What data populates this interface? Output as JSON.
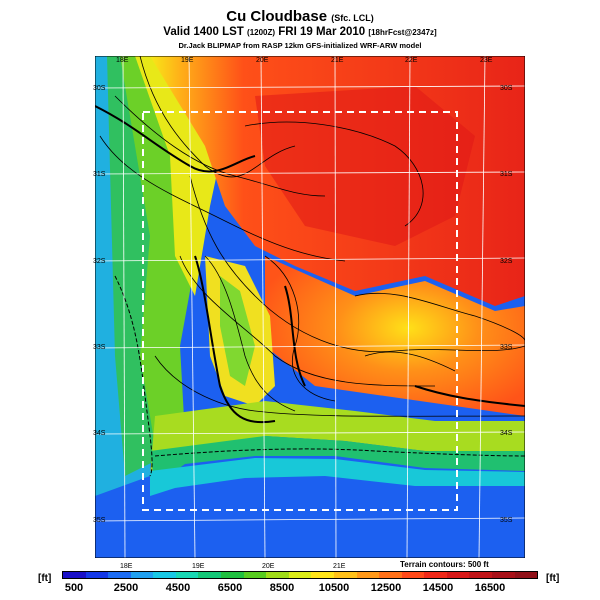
{
  "header": {
    "title": "Cu Cloudbase",
    "title_suffix": "(Sfc. LCL)",
    "valid_main": "Valid 1400 LST",
    "valid_time_code": "(1200Z)",
    "valid_date": "FRI 19 Mar 2010",
    "valid_fcst": "[18hrFcst@2347z]",
    "credit": "Dr.Jack BLIPMAP from RASP 12km GFS-initialized WRF-ARW model"
  },
  "map": {
    "lon_labels_top": [
      "18E",
      "19E",
      "20E",
      "21E",
      "22E",
      "23E"
    ],
    "lon_labels_bottom": [
      "18E",
      "19E",
      "20E",
      "21E"
    ],
    "lat_labels": [
      "30S",
      "31S",
      "32S",
      "33S",
      "34S",
      "35S"
    ],
    "terrain_note": "Terrain contours: 500 ft"
  },
  "colorbar": {
    "unit_left": "[ft]",
    "unit_right": "[ft]",
    "labels": [
      "500",
      "2500",
      "4500",
      "6500",
      "8500",
      "10500",
      "12500",
      "14500",
      "16500"
    ],
    "colors": [
      "#1a10c8",
      "#1438e8",
      "#1c6cf4",
      "#20a0f0",
      "#18c8e4",
      "#18d8b4",
      "#14c878",
      "#20c040",
      "#58cc20",
      "#a0dc18",
      "#dcec18",
      "#ffe418",
      "#ffc018",
      "#ff9818",
      "#ff7018",
      "#ff4818",
      "#f02818",
      "#d81818",
      "#c01418",
      "#a81018",
      "#901018"
    ]
  }
}
